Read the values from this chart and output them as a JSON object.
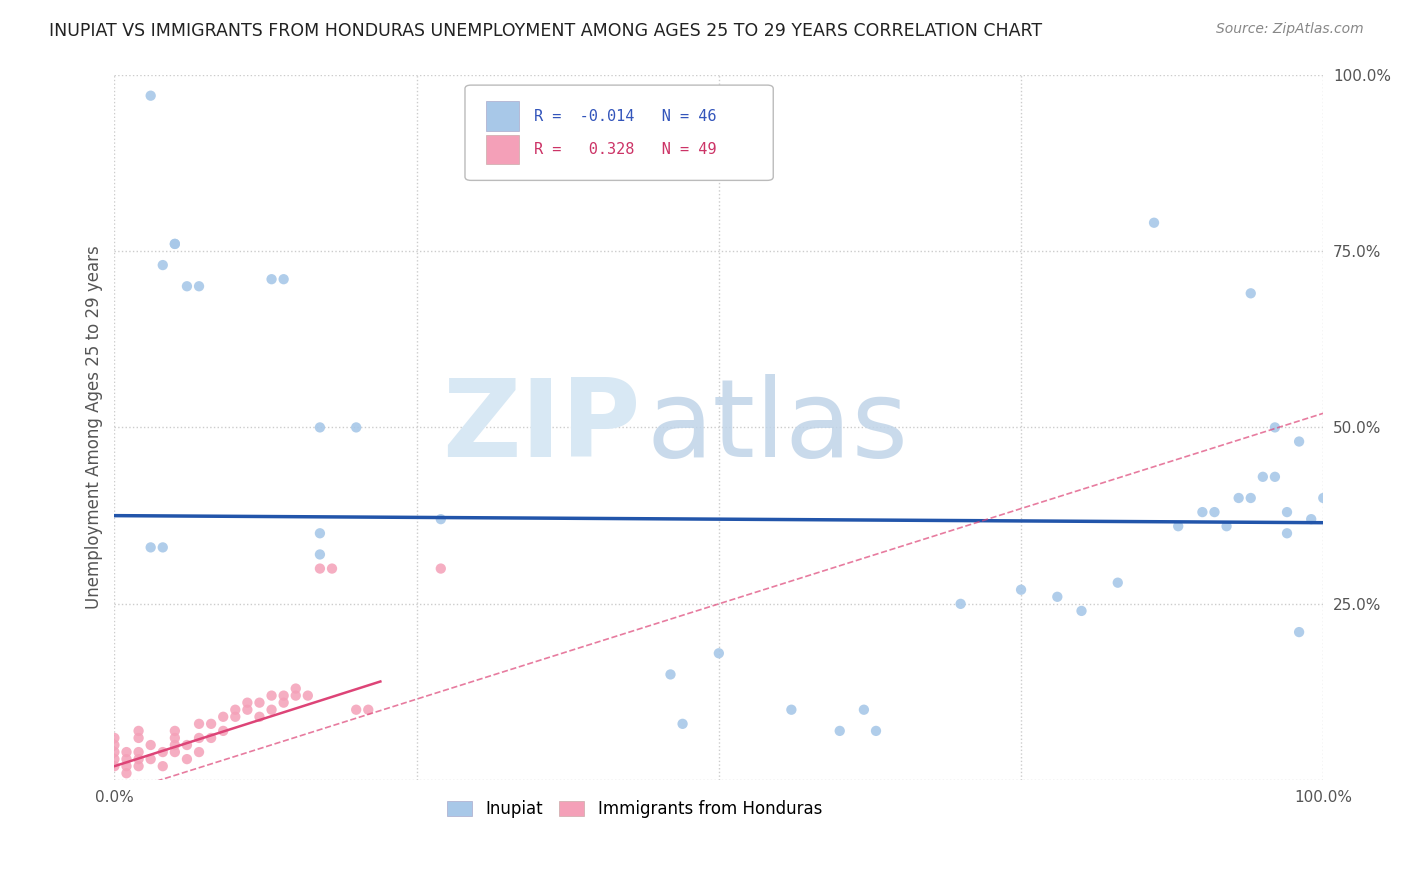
{
  "title": "INUPIAT VS IMMIGRANTS FROM HONDURAS UNEMPLOYMENT AMONG AGES 25 TO 29 YEARS CORRELATION CHART",
  "source": "Source: ZipAtlas.com",
  "ylabel": "Unemployment Among Ages 25 to 29 years",
  "xlim": [
    0,
    1
  ],
  "ylim": [
    0,
    1
  ],
  "inupiat_color": "#a8c8e8",
  "honduras_color": "#f4a0b8",
  "inupiat_line_color": "#2255aa",
  "honduras_line_color": "#dd4477",
  "background_color": "#ffffff",
  "inupiat_scatter": [
    [
      0.03,
      0.97
    ],
    [
      0.04,
      0.73
    ],
    [
      0.05,
      0.76
    ],
    [
      0.05,
      0.76
    ],
    [
      0.06,
      0.7
    ],
    [
      0.07,
      0.7
    ],
    [
      0.13,
      0.71
    ],
    [
      0.14,
      0.71
    ],
    [
      0.17,
      0.5
    ],
    [
      0.2,
      0.5
    ],
    [
      0.27,
      0.37
    ],
    [
      0.17,
      0.35
    ],
    [
      0.17,
      0.32
    ],
    [
      0.03,
      0.33
    ],
    [
      0.04,
      0.33
    ],
    [
      0.46,
      0.15
    ],
    [
      0.5,
      0.18
    ],
    [
      0.56,
      0.1
    ],
    [
      0.62,
      0.1
    ],
    [
      0.47,
      0.08
    ],
    [
      0.6,
      0.07
    ],
    [
      0.63,
      0.07
    ],
    [
      0.7,
      0.25
    ],
    [
      0.75,
      0.27
    ],
    [
      0.78,
      0.26
    ],
    [
      0.8,
      0.24
    ],
    [
      0.83,
      0.28
    ],
    [
      0.86,
      0.79
    ],
    [
      0.88,
      0.36
    ],
    [
      0.9,
      0.38
    ],
    [
      0.91,
      0.38
    ],
    [
      0.92,
      0.36
    ],
    [
      0.93,
      0.4
    ],
    [
      0.94,
      0.4
    ],
    [
      0.94,
      0.69
    ],
    [
      0.95,
      0.43
    ],
    [
      0.96,
      0.5
    ],
    [
      0.96,
      0.43
    ],
    [
      0.97,
      0.35
    ],
    [
      0.97,
      0.38
    ],
    [
      0.98,
      0.21
    ],
    [
      0.98,
      0.48
    ],
    [
      0.99,
      0.37
    ],
    [
      1.0,
      0.4
    ]
  ],
  "honduras_scatter": [
    [
      0.0,
      0.03
    ],
    [
      0.0,
      0.04
    ],
    [
      0.0,
      0.05
    ],
    [
      0.0,
      0.06
    ],
    [
      0.0,
      0.02
    ],
    [
      0.01,
      0.03
    ],
    [
      0.01,
      0.04
    ],
    [
      0.01,
      0.02
    ],
    [
      0.01,
      0.01
    ],
    [
      0.02,
      0.02
    ],
    [
      0.02,
      0.03
    ],
    [
      0.02,
      0.04
    ],
    [
      0.02,
      0.06
    ],
    [
      0.02,
      0.07
    ],
    [
      0.03,
      0.03
    ],
    [
      0.03,
      0.05
    ],
    [
      0.04,
      0.02
    ],
    [
      0.04,
      0.04
    ],
    [
      0.05,
      0.04
    ],
    [
      0.05,
      0.05
    ],
    [
      0.05,
      0.06
    ],
    [
      0.05,
      0.07
    ],
    [
      0.06,
      0.03
    ],
    [
      0.06,
      0.05
    ],
    [
      0.07,
      0.04
    ],
    [
      0.07,
      0.06
    ],
    [
      0.07,
      0.08
    ],
    [
      0.08,
      0.06
    ],
    [
      0.08,
      0.08
    ],
    [
      0.09,
      0.07
    ],
    [
      0.09,
      0.09
    ],
    [
      0.1,
      0.09
    ],
    [
      0.1,
      0.1
    ],
    [
      0.11,
      0.1
    ],
    [
      0.11,
      0.11
    ],
    [
      0.12,
      0.09
    ],
    [
      0.12,
      0.11
    ],
    [
      0.13,
      0.1
    ],
    [
      0.13,
      0.12
    ],
    [
      0.14,
      0.11
    ],
    [
      0.14,
      0.12
    ],
    [
      0.15,
      0.12
    ],
    [
      0.15,
      0.13
    ],
    [
      0.16,
      0.12
    ],
    [
      0.17,
      0.3
    ],
    [
      0.18,
      0.3
    ],
    [
      0.2,
      0.1
    ],
    [
      0.21,
      0.1
    ],
    [
      0.27,
      0.3
    ]
  ],
  "inupiat_line": {
    "x0": 0.0,
    "y0": 0.375,
    "x1": 1.0,
    "y1": 0.365
  },
  "honduras_solid_line": {
    "x0": 0.0,
    "y0": 0.02,
    "x1": 0.22,
    "y1": 0.14
  },
  "honduras_dashed_line": {
    "x0": 0.0,
    "y0": -0.02,
    "x1": 1.0,
    "y1": 0.52
  }
}
